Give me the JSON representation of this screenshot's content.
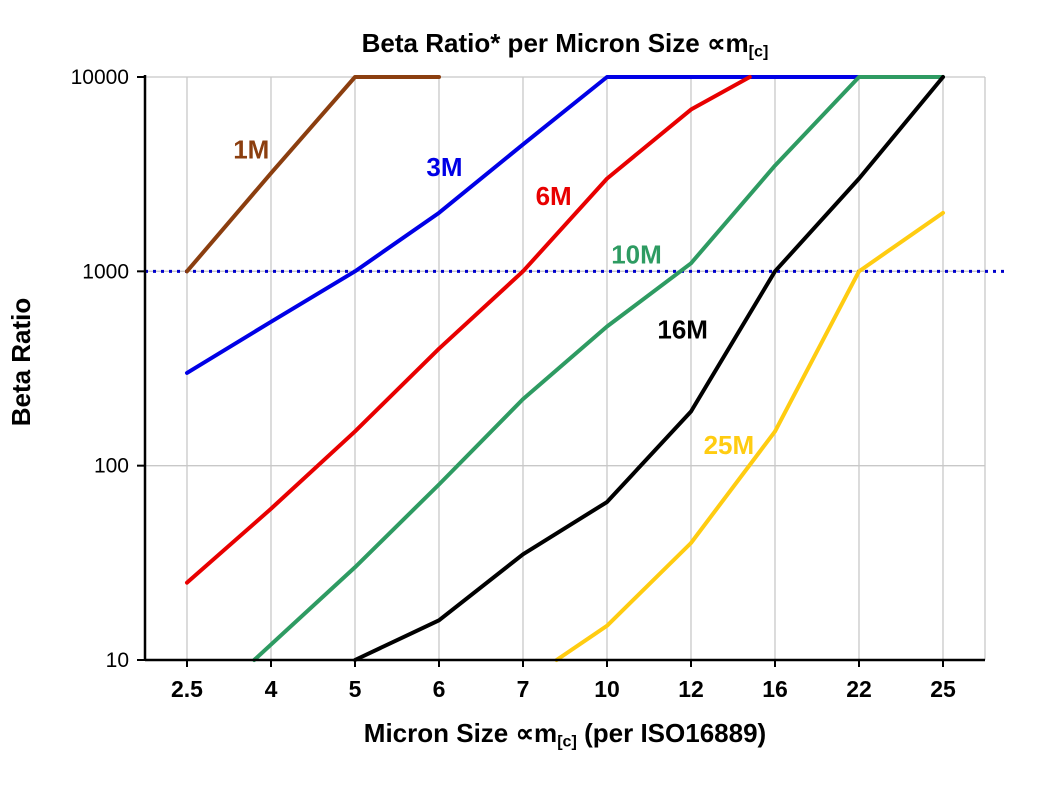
{
  "title": {
    "main": "Beta Ratio* per Micron Size ",
    "prop": "∝m",
    "sub": "[c]"
  },
  "y_axis": {
    "label": "Beta Ratio"
  },
  "x_axis": {
    "label_pre": "Micron Size ",
    "prop": "∝m",
    "sub": "[c]",
    "label_post": " (per ISO16889)"
  },
  "chart_data": {
    "type": "line",
    "title": "Beta Ratio* per Micron Size ∝m[c]",
    "xlabel": "Micron Size ∝m[c] (per ISO16889)",
    "ylabel": "Beta Ratio",
    "x_categories": [
      "2.5",
      "4",
      "5",
      "6",
      "7",
      "10",
      "12",
      "16",
      "22",
      "25"
    ],
    "y_scale": "log",
    "ylim": [
      10,
      10000
    ],
    "y_ticks": [
      10000,
      1000,
      100,
      10
    ],
    "grid": "vertical-category + horizontal-decade",
    "legend_position": "inline-labels",
    "reference_line": {
      "y": 1000,
      "color": "#0000cc",
      "style": "dotted"
    },
    "series": [
      {
        "name": "1M",
        "color": "#8b3e0f",
        "points": [
          [
            0,
            1000
          ],
          [
            1,
            3200
          ],
          [
            2,
            10000
          ],
          [
            3,
            10000
          ]
        ],
        "label_pos": [
          0.55,
          3800
        ]
      },
      {
        "name": "3M",
        "color": "#0000e6",
        "points": [
          [
            0,
            300
          ],
          [
            1,
            550
          ],
          [
            2,
            1000
          ],
          [
            3,
            2000
          ],
          [
            4,
            4500
          ],
          [
            5,
            10000
          ],
          [
            8,
            10000
          ]
        ],
        "label_pos": [
          2.85,
          3100
        ]
      },
      {
        "name": "6M",
        "color": "#e80000",
        "points": [
          [
            0,
            25
          ],
          [
            1,
            60
          ],
          [
            2,
            150
          ],
          [
            3,
            400
          ],
          [
            4,
            1000
          ],
          [
            5,
            3000
          ],
          [
            6,
            6800
          ],
          [
            6.7,
            10000
          ]
        ],
        "label_pos": [
          4.15,
          2200
        ]
      },
      {
        "name": "10M",
        "color": "#2e9b62",
        "points": [
          [
            0.8,
            10
          ],
          [
            2,
            30
          ],
          [
            3,
            80
          ],
          [
            4,
            220
          ],
          [
            5,
            520
          ],
          [
            6,
            1100
          ],
          [
            7,
            3500
          ],
          [
            8,
            10000
          ],
          [
            9,
            10000
          ]
        ],
        "label_pos": [
          5.05,
          1100
        ]
      },
      {
        "name": "16M",
        "color": "#000000",
        "points": [
          [
            2,
            10
          ],
          [
            3,
            16
          ],
          [
            4,
            35
          ],
          [
            5,
            65
          ],
          [
            6,
            190
          ],
          [
            7,
            1000
          ],
          [
            8,
            3000
          ],
          [
            9,
            10000
          ]
        ],
        "label_pos": [
          5.6,
          450
        ]
      },
      {
        "name": "25M",
        "color": "#ffcc11",
        "points": [
          [
            4.4,
            10
          ],
          [
            5,
            15
          ],
          [
            6,
            40
          ],
          [
            7,
            150
          ],
          [
            8,
            1000
          ],
          [
            9,
            2000
          ]
        ],
        "label_pos": [
          6.15,
          115
        ]
      }
    ],
    "plot_style": {
      "grid_color": "#c8c8c8",
      "axis_color": "#000000",
      "line_width": 4
    }
  }
}
